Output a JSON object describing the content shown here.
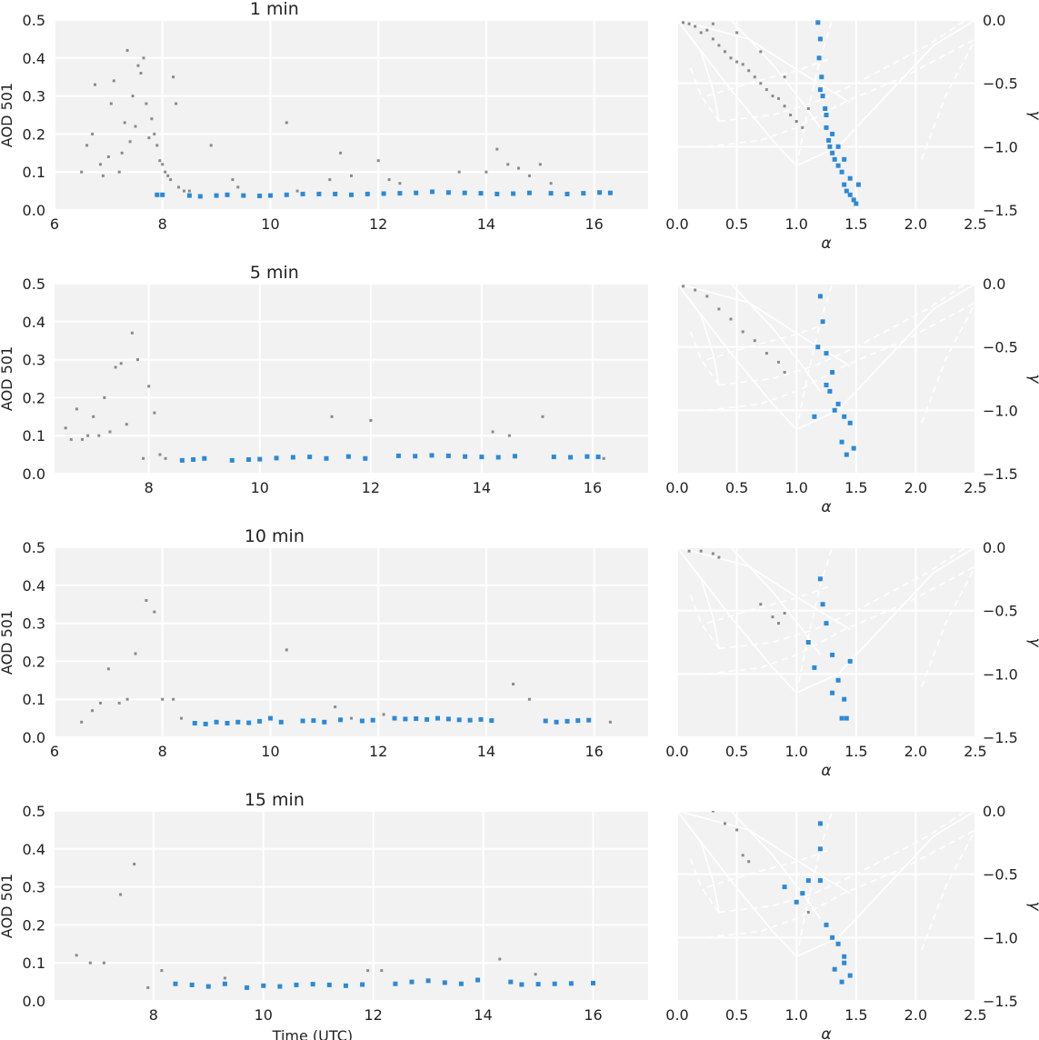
{
  "colors": {
    "background": "#f2f2f2",
    "grid": "#ffffff",
    "retained": "#2a8ad8",
    "rejected": "#8a8a8a",
    "text": "#222222"
  },
  "chart_data": [
    {
      "type": "scatter",
      "title": "1 min",
      "xlabel": "",
      "ylabel": "AOD 501",
      "xlim": [
        6,
        17
      ],
      "ylim": [
        0,
        0.5
      ],
      "xticks": [
        6,
        8,
        10,
        12,
        14,
        16
      ],
      "yticks": [
        0.0,
        0.1,
        0.2,
        0.3,
        0.4,
        0.5
      ],
      "xtick_labels": [
        "6",
        "8",
        "10",
        "12",
        "14",
        "16"
      ],
      "ytick_labels": [
        "0.0",
        "0.1",
        "0.2",
        "0.3",
        "0.4",
        "0.5"
      ],
      "grid": true,
      "series": [
        {
          "color": "#8a8a8a",
          "marker": "small-square",
          "x": [
            6.5,
            6.6,
            6.7,
            6.75,
            6.85,
            6.9,
            7.0,
            7.05,
            7.1,
            7.2,
            7.25,
            7.3,
            7.35,
            7.4,
            7.45,
            7.5,
            7.55,
            7.6,
            7.65,
            7.7,
            7.75,
            7.8,
            7.85,
            7.9,
            7.95,
            8.0,
            8.05,
            8.1,
            8.15,
            8.2,
            8.25,
            8.3,
            8.4,
            8.5,
            8.9,
            9.3,
            9.4,
            10.3,
            10.5,
            11.1,
            11.3,
            11.5,
            12.0,
            12.2,
            12.4,
            13.5,
            14.0,
            14.2,
            14.4,
            14.6,
            14.8,
            15.0,
            15.2
          ],
          "y": [
            0.1,
            0.17,
            0.2,
            0.33,
            0.12,
            0.09,
            0.14,
            0.28,
            0.34,
            0.1,
            0.15,
            0.23,
            0.42,
            0.18,
            0.3,
            0.22,
            0.38,
            0.36,
            0.4,
            0.28,
            0.19,
            0.24,
            0.2,
            0.17,
            0.13,
            0.12,
            0.1,
            0.09,
            0.08,
            0.35,
            0.28,
            0.06,
            0.05,
            0.05,
            0.17,
            0.08,
            0.06,
            0.23,
            0.05,
            0.08,
            0.15,
            0.09,
            0.13,
            0.08,
            0.07,
            0.1,
            0.1,
            0.16,
            0.12,
            0.11,
            0.09,
            0.12,
            0.07
          ]
        },
        {
          "color": "#2a8ad8",
          "marker": "square",
          "x": [
            7.9,
            8.0,
            8.5,
            8.7,
            9.0,
            9.2,
            9.5,
            9.8,
            10.0,
            10.3,
            10.6,
            10.9,
            11.2,
            11.5,
            11.8,
            12.1,
            12.4,
            12.7,
            13.0,
            13.3,
            13.6,
            13.9,
            14.2,
            14.5,
            14.8,
            15.2,
            15.5,
            15.8,
            16.1,
            16.3
          ],
          "y": [
            0.04,
            0.04,
            0.038,
            0.036,
            0.038,
            0.04,
            0.038,
            0.037,
            0.038,
            0.04,
            0.042,
            0.042,
            0.042,
            0.04,
            0.042,
            0.043,
            0.044,
            0.045,
            0.048,
            0.046,
            0.045,
            0.044,
            0.042,
            0.043,
            0.045,
            0.044,
            0.042,
            0.044,
            0.046,
            0.045
          ]
        }
      ]
    },
    {
      "type": "scatter",
      "title": "",
      "xlabel": "α",
      "ylabel": "γ",
      "xlim": [
        0,
        2.5
      ],
      "ylim": [
        -1.5,
        0
      ],
      "xticks": [
        0.0,
        0.5,
        1.0,
        1.5,
        2.0,
        2.5
      ],
      "yticks": [
        0.0,
        -0.5,
        -1.0,
        -1.5
      ],
      "xtick_labels": [
        "0.0",
        "0.5",
        "1.0",
        "1.5",
        "2.0",
        "2.5"
      ],
      "ytick_labels": [
        "0.0",
        "−0.5",
        "−1.0",
        "−1.5"
      ],
      "grid": true,
      "yaxis_side": "right",
      "series": [
        {
          "color": "#8a8a8a",
          "marker": "small-square",
          "x": [
            0.05,
            0.1,
            0.15,
            0.2,
            0.25,
            0.3,
            0.35,
            0.4,
            0.45,
            0.5,
            0.55,
            0.6,
            0.65,
            0.7,
            0.75,
            0.8,
            0.85,
            0.9,
            0.95,
            1.0,
            1.05,
            0.3,
            0.5,
            0.7,
            0.9,
            1.1
          ],
          "y": [
            -0.02,
            -0.03,
            -0.05,
            -0.1,
            -0.08,
            -0.15,
            -0.2,
            -0.25,
            -0.3,
            -0.33,
            -0.35,
            -0.4,
            -0.45,
            -0.5,
            -0.55,
            -0.6,
            -0.62,
            -0.68,
            -0.75,
            -0.8,
            -0.85,
            -0.03,
            -0.1,
            -0.25,
            -0.45,
            -0.7
          ]
        },
        {
          "color": "#2a8ad8",
          "marker": "square",
          "x": [
            1.18,
            1.2,
            1.19,
            1.21,
            1.22,
            1.24,
            1.25,
            1.27,
            1.28,
            1.3,
            1.32,
            1.35,
            1.38,
            1.4,
            1.42,
            1.45,
            1.48,
            1.5,
            1.52,
            1.3,
            1.35,
            1.4,
            1.45,
            1.25,
            1.2
          ],
          "y": [
            -0.02,
            -0.15,
            -0.3,
            -0.45,
            -0.6,
            -0.7,
            -0.85,
            -0.95,
            -1.0,
            -1.05,
            -1.1,
            -1.15,
            -1.2,
            -1.3,
            -1.35,
            -1.38,
            -1.42,
            -1.45,
            -1.3,
            -0.9,
            -1.0,
            -1.1,
            -1.25,
            -0.75,
            -0.55
          ]
        }
      ]
    },
    {
      "type": "scatter",
      "title": "5 min",
      "xlabel": "",
      "ylabel": "AOD 501",
      "xlim": [
        6.3,
        17
      ],
      "ylim": [
        0,
        0.5
      ],
      "xticks": [
        8,
        10,
        12,
        14,
        16
      ],
      "yticks": [
        0.0,
        0.1,
        0.2,
        0.3,
        0.4,
        0.5
      ],
      "xtick_labels": [
        "8",
        "10",
        "12",
        "14",
        "16"
      ],
      "ytick_labels": [
        "0.0",
        "0.1",
        "0.2",
        "0.3",
        "0.4",
        "0.5"
      ],
      "grid": true,
      "series": [
        {
          "color": "#8a8a8a",
          "marker": "small-square",
          "x": [
            6.5,
            6.6,
            6.7,
            6.8,
            6.9,
            7.0,
            7.1,
            7.2,
            7.3,
            7.4,
            7.5,
            7.6,
            7.7,
            7.8,
            7.9,
            8.0,
            8.1,
            8.2,
            8.3,
            11.3,
            12.0,
            14.2,
            14.5,
            15.1,
            16.2
          ],
          "y": [
            0.12,
            0.09,
            0.17,
            0.09,
            0.1,
            0.15,
            0.1,
            0.2,
            0.11,
            0.28,
            0.29,
            0.13,
            0.37,
            0.3,
            0.04,
            0.23,
            0.16,
            0.05,
            0.04,
            0.15,
            0.14,
            0.11,
            0.1,
            0.15,
            0.04
          ]
        },
        {
          "color": "#2a8ad8",
          "marker": "square",
          "x": [
            8.6,
            8.8,
            9.0,
            9.5,
            9.8,
            10.0,
            10.3,
            10.6,
            10.9,
            11.2,
            11.6,
            11.9,
            12.5,
            12.8,
            13.1,
            13.4,
            13.7,
            14.0,
            14.3,
            14.6,
            15.3,
            15.6,
            15.9,
            16.1
          ],
          "y": [
            0.035,
            0.037,
            0.04,
            0.035,
            0.037,
            0.038,
            0.041,
            0.043,
            0.044,
            0.04,
            0.045,
            0.04,
            0.047,
            0.046,
            0.048,
            0.047,
            0.045,
            0.044,
            0.043,
            0.046,
            0.044,
            0.043,
            0.045,
            0.044
          ]
        }
      ]
    },
    {
      "type": "scatter",
      "title": "",
      "xlabel": "α",
      "ylabel": "γ",
      "xlim": [
        0,
        2.5
      ],
      "ylim": [
        -1.5,
        0
      ],
      "xticks": [
        0.0,
        0.5,
        1.0,
        1.5,
        2.0,
        2.5
      ],
      "yticks": [
        0.0,
        -0.5,
        -1.0,
        -1.5
      ],
      "xtick_labels": [
        "0.0",
        "0.5",
        "1.0",
        "1.5",
        "2.0",
        "2.5"
      ],
      "ytick_labels": [
        "0.0",
        "−0.5",
        "−1.0",
        "−1.5"
      ],
      "grid": true,
      "yaxis_side": "right",
      "series": [
        {
          "color": "#8a8a8a",
          "marker": "small-square",
          "x": [
            0.05,
            0.15,
            0.25,
            0.35,
            0.45,
            0.55,
            0.65,
            0.75,
            0.85,
            0.9
          ],
          "y": [
            -0.02,
            -0.05,
            -0.1,
            -0.2,
            -0.28,
            -0.38,
            -0.45,
            -0.55,
            -0.62,
            -0.7
          ]
        },
        {
          "color": "#2a8ad8",
          "marker": "square",
          "x": [
            1.2,
            1.22,
            1.18,
            1.25,
            1.3,
            1.28,
            1.35,
            1.4,
            1.45,
            1.38,
            1.42,
            1.32,
            1.15,
            1.25,
            1.48
          ],
          "y": [
            -0.1,
            -0.3,
            -0.5,
            -0.55,
            -0.7,
            -0.85,
            -0.95,
            -1.05,
            -1.1,
            -1.25,
            -1.35,
            -1.0,
            -1.05,
            -0.8,
            -1.3
          ]
        }
      ]
    },
    {
      "type": "scatter",
      "title": "10 min",
      "xlabel": "",
      "ylabel": "AOD 501",
      "xlim": [
        6,
        17
      ],
      "ylim": [
        0,
        0.5
      ],
      "xticks": [
        6,
        8,
        10,
        12,
        14,
        16
      ],
      "yticks": [
        0.0,
        0.1,
        0.2,
        0.3,
        0.4,
        0.5
      ],
      "xtick_labels": [
        "6",
        "8",
        "10",
        "12",
        "14",
        "16"
      ],
      "ytick_labels": [
        "0.0",
        "0.1",
        "0.2",
        "0.3",
        "0.4",
        "0.5"
      ],
      "grid": true,
      "series": [
        {
          "color": "#8a8a8a",
          "marker": "small-square",
          "x": [
            6.5,
            6.7,
            6.85,
            7.0,
            7.2,
            7.35,
            7.5,
            7.7,
            7.85,
            8.0,
            8.2,
            8.35,
            10.3,
            11.2,
            11.5,
            12.1,
            14.5,
            14.8,
            16.3
          ],
          "y": [
            0.04,
            0.07,
            0.09,
            0.18,
            0.09,
            0.1,
            0.22,
            0.36,
            0.33,
            0.1,
            0.1,
            0.05,
            0.23,
            0.08,
            0.05,
            0.06,
            0.14,
            0.1,
            0.04
          ]
        },
        {
          "color": "#2a8ad8",
          "marker": "square",
          "x": [
            8.6,
            8.8,
            9.0,
            9.2,
            9.4,
            9.6,
            9.8,
            10.0,
            10.2,
            10.6,
            10.8,
            11.0,
            11.3,
            11.7,
            11.9,
            12.3,
            12.5,
            12.7,
            12.9,
            13.1,
            13.3,
            13.5,
            13.7,
            13.9,
            14.1,
            15.1,
            15.3,
            15.5,
            15.7,
            15.9
          ],
          "y": [
            0.037,
            0.035,
            0.04,
            0.037,
            0.04,
            0.038,
            0.042,
            0.05,
            0.04,
            0.043,
            0.044,
            0.04,
            0.046,
            0.043,
            0.045,
            0.05,
            0.048,
            0.049,
            0.047,
            0.05,
            0.048,
            0.046,
            0.045,
            0.047,
            0.044,
            0.043,
            0.04,
            0.042,
            0.044,
            0.045
          ]
        }
      ]
    },
    {
      "type": "scatter",
      "title": "",
      "xlabel": "α",
      "ylabel": "γ",
      "xlim": [
        0,
        2.5
      ],
      "ylim": [
        -1.5,
        0
      ],
      "xticks": [
        0.0,
        0.5,
        1.0,
        1.5,
        2.0,
        2.5
      ],
      "yticks": [
        0.0,
        -0.5,
        -1.0,
        -1.5
      ],
      "xtick_labels": [
        "0.0",
        "0.5",
        "1.0",
        "1.5",
        "2.0",
        "2.5"
      ],
      "ytick_labels": [
        "0.0",
        "−0.5",
        "−1.0",
        "−1.5"
      ],
      "grid": true,
      "yaxis_side": "right",
      "series": [
        {
          "color": "#8a8a8a",
          "marker": "small-square",
          "x": [
            0.1,
            0.2,
            0.3,
            0.35,
            0.7,
            0.8,
            0.85,
            0.9
          ],
          "y": [
            -0.03,
            -0.03,
            -0.05,
            -0.08,
            -0.45,
            -0.55,
            -0.6,
            -0.52
          ]
        },
        {
          "color": "#2a8ad8",
          "marker": "square",
          "x": [
            1.2,
            1.22,
            1.25,
            1.15,
            1.3,
            1.35,
            1.4,
            1.38,
            1.45,
            1.3,
            1.42,
            1.1
          ],
          "y": [
            -0.25,
            -0.45,
            -0.6,
            -0.95,
            -0.85,
            -1.05,
            -1.2,
            -1.35,
            -0.9,
            -1.15,
            -1.35,
            -0.75
          ]
        }
      ]
    },
    {
      "type": "scatter",
      "title": "15 min",
      "xlabel": "Time (UTC)",
      "ylabel": "AOD 501",
      "xlim": [
        6.2,
        17
      ],
      "ylim": [
        0,
        0.5
      ],
      "xticks": [
        8,
        10,
        12,
        14,
        16
      ],
      "yticks": [
        0.0,
        0.1,
        0.2,
        0.3,
        0.4,
        0.5
      ],
      "xtick_labels": [
        "8",
        "10",
        "12",
        "14",
        "16"
      ],
      "ytick_labels": [
        "0.0",
        "0.1",
        "0.2",
        "0.3",
        "0.4",
        "0.5"
      ],
      "grid": true,
      "series": [
        {
          "color": "#8a8a8a",
          "marker": "small-square",
          "x": [
            6.6,
            6.85,
            7.1,
            7.4,
            7.65,
            7.9,
            8.15,
            9.3,
            11.9,
            12.15,
            14.3,
            14.95
          ],
          "y": [
            0.12,
            0.1,
            0.1,
            0.28,
            0.36,
            0.035,
            0.08,
            0.06,
            0.08,
            0.08,
            0.11,
            0.07
          ]
        },
        {
          "color": "#2a8ad8",
          "marker": "square",
          "x": [
            8.4,
            8.7,
            9.0,
            9.3,
            9.7,
            10.0,
            10.3,
            10.6,
            10.9,
            11.2,
            11.5,
            11.8,
            12.4,
            12.7,
            13.0,
            13.3,
            13.6,
            13.9,
            14.5,
            14.7,
            15.0,
            15.3,
            15.6,
            16.0
          ],
          "y": [
            0.045,
            0.042,
            0.038,
            0.045,
            0.035,
            0.04,
            0.038,
            0.042,
            0.044,
            0.042,
            0.04,
            0.043,
            0.045,
            0.05,
            0.053,
            0.048,
            0.045,
            0.055,
            0.05,
            0.043,
            0.044,
            0.045,
            0.046,
            0.047
          ]
        }
      ]
    },
    {
      "type": "scatter",
      "title": "",
      "xlabel": "α",
      "ylabel": "γ",
      "xlim": [
        0,
        2.5
      ],
      "ylim": [
        -1.5,
        0
      ],
      "xticks": [
        0.0,
        0.5,
        1.0,
        1.5,
        2.0,
        2.5
      ],
      "yticks": [
        0.0,
        -0.5,
        -1.0,
        -1.5
      ],
      "xtick_labels": [
        "0.0",
        "0.5",
        "1.0",
        "1.5",
        "2.0",
        "2.5"
      ],
      "ytick_labels": [
        "0.0",
        "−0.5",
        "−1.0",
        "−1.5"
      ],
      "grid": true,
      "yaxis_side": "right",
      "series": [
        {
          "color": "#8a8a8a",
          "marker": "small-square",
          "x": [
            0.3,
            0.4,
            0.5,
            0.55,
            0.6,
            1.1
          ],
          "y": [
            0.0,
            -0.1,
            -0.15,
            -0.35,
            -0.4,
            -0.8
          ]
        },
        {
          "color": "#2a8ad8",
          "marker": "square",
          "x": [
            1.2,
            1.2,
            1.2,
            1.1,
            0.9,
            1.05,
            1.0,
            1.25,
            1.3,
            1.35,
            1.4,
            1.32,
            1.45,
            1.38,
            1.4
          ],
          "y": [
            -0.1,
            -0.3,
            -0.55,
            -0.55,
            -0.6,
            -0.65,
            -0.72,
            -0.9,
            -1.0,
            -1.05,
            -1.15,
            -1.25,
            -1.3,
            -1.35,
            -1.2
          ]
        }
      ]
    }
  ]
}
